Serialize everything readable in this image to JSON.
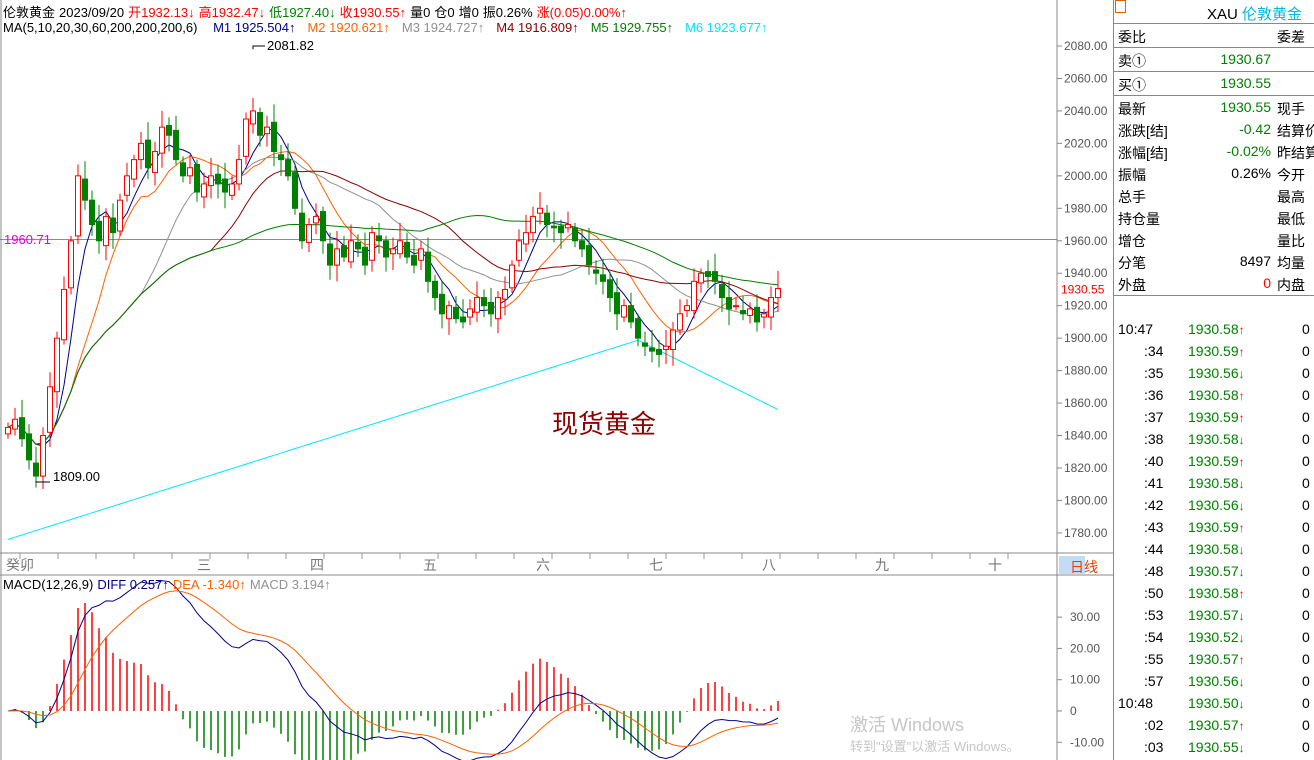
{
  "header": {
    "name": "伦敦黄金",
    "date": "2023/09/20",
    "open": "开1932.13↓",
    "high": "高1932.47↓",
    "low": "低1927.40↓",
    "close": "收1930.55↑",
    "volume": "量0",
    "position": "仓0",
    "increase": "增0",
    "amplitude": "振0.26%",
    "change": "涨(0.05)0.00%↑"
  },
  "ma": {
    "label": "MA(5,10,20,30,60,200,200,200,6)",
    "items": [
      {
        "text": "M1 1925.504↑",
        "color": "#00008b",
        "period": 5
      },
      {
        "text": "M2 1920.621↑",
        "color": "#ff6000",
        "period": 10
      },
      {
        "text": "M3 1924.727↑",
        "color": "#909090",
        "period": 20
      },
      {
        "text": "M4 1916.809↑",
        "color": "#8b0000",
        "period": 30
      },
      {
        "text": "M5 1929.755↑",
        "color": "#008000",
        "period": 60
      },
      {
        "text": "M6 1923.677↑",
        "color": "#00e5ff",
        "period": 200
      }
    ]
  },
  "chart": {
    "watermark": "现货黄金",
    "hline_label": "1960.71",
    "hline_value": 1960.71,
    "last_price_label": "1930.55",
    "max_label": "2081.82",
    "min_label": "1809.00",
    "price_ticks": [
      "2080.00",
      "2060.00",
      "2040.00",
      "2020.00",
      "2000.00",
      "1980.00",
      "1960.00",
      "1940.00",
      "1920.00",
      "1900.00",
      "1880.00",
      "1860.00",
      "1840.00",
      "1820.00",
      "1800.00",
      "1780.00"
    ],
    "up_color": "#ff0000",
    "down_color": "#008000",
    "closes": [
      1845,
      1850,
      1838,
      1825,
      1815,
      1840,
      1870,
      1900,
      1930,
      1960,
      2000,
      1985,
      1970,
      1960,
      1975,
      1965,
      1985,
      2000,
      2010,
      2020,
      2005,
      2015,
      2030,
      2025,
      2010,
      2000,
      2005,
      1990,
      1995,
      2000,
      1995,
      1990,
      1995,
      2010,
      2035,
      2040,
      2025,
      2030,
      2015,
      2010,
      2000,
      1980,
      1960,
      1970,
      1975,
      1960,
      1945,
      1955,
      1950,
      1960,
      1955,
      1945,
      1965,
      1960,
      1950,
      1955,
      1960,
      1950,
      1945,
      1955,
      1935,
      1925,
      1915,
      1920,
      1912,
      1910,
      1918,
      1925,
      1920,
      1915,
      1925,
      1930,
      1945,
      1960,
      1965,
      1975,
      1980,
      1970,
      1968,
      1965,
      1970,
      1960,
      1955,
      1945,
      1940,
      1935,
      1925,
      1915,
      1920,
      1910,
      1900,
      1895,
      1892,
      1890,
      1895,
      1905,
      1915,
      1920,
      1935,
      1940,
      1938,
      1935,
      1925,
      1918,
      1920,
      1915,
      1918,
      1910,
      1915,
      1925,
      1930.55
    ]
  },
  "date_axis": {
    "labels": [
      "癸卯",
      "三",
      "四",
      "五",
      "六",
      "七",
      "八",
      "九",
      "十"
    ],
    "period": "日线"
  },
  "macd": {
    "label": "MACD(12,26,9)",
    "diff": "DIFF 0.257↑",
    "dea": "DEA -1.340↑",
    "macd": "MACD 3.194↑",
    "ticks": [
      "30.00",
      "20.00",
      "10.00",
      "0",
      "-10.00"
    ]
  },
  "panel": {
    "symbol": "XAU",
    "name": "伦敦黄金",
    "weibi": "委比",
    "weicha": "委差",
    "sell_label": "卖①",
    "sell": "1930.67",
    "buy_label": "买①",
    "buy": "1930.55",
    "rows": [
      {
        "l": "最新",
        "v": "1930.55",
        "vc": "#008000",
        "r": "现手"
      },
      {
        "l": "涨跌[结]",
        "v": "-0.42",
        "vc": "#008000",
        "r": "结算价"
      },
      {
        "l": "涨幅[结]",
        "v": "-0.02%",
        "vc": "#008000",
        "r": "昨结算"
      },
      {
        "l": "振幅",
        "v": "0.26%",
        "vc": "#000",
        "r": "今开"
      },
      {
        "l": "总手",
        "v": "",
        "vc": "#000",
        "r": "最高"
      },
      {
        "l": "持仓量",
        "v": "",
        "vc": "#000",
        "r": "最低"
      },
      {
        "l": "增仓",
        "v": "",
        "vc": "#000",
        "r": "量比"
      },
      {
        "l": "分笔",
        "v": "8497",
        "vc": "#000",
        "r": "均量"
      },
      {
        "l": "外盘",
        "v": "0",
        "vc": "#ff0000",
        "r": "内盘"
      }
    ],
    "ticks": [
      {
        "t": "10:47",
        "p": "1930.58",
        "a": "↑",
        "q": "0"
      },
      {
        "t": ":34",
        "p": "1930.59",
        "a": "↑",
        "q": "0"
      },
      {
        "t": ":35",
        "p": "1930.56",
        "a": "↓",
        "q": "0"
      },
      {
        "t": ":36",
        "p": "1930.58",
        "a": "↑",
        "q": "0"
      },
      {
        "t": ":37",
        "p": "1930.59",
        "a": "↑",
        "q": "0"
      },
      {
        "t": ":38",
        "p": "1930.58",
        "a": "↓",
        "q": "0"
      },
      {
        "t": ":40",
        "p": "1930.59",
        "a": "↑",
        "q": "0"
      },
      {
        "t": ":41",
        "p": "1930.58",
        "a": "↓",
        "q": "0"
      },
      {
        "t": ":42",
        "p": "1930.56",
        "a": "↓",
        "q": "0"
      },
      {
        "t": ":43",
        "p": "1930.59",
        "a": "↑",
        "q": "0"
      },
      {
        "t": ":44",
        "p": "1930.58",
        "a": "↓",
        "q": "0"
      },
      {
        "t": ":48",
        "p": "1930.57",
        "a": "↓",
        "q": "0"
      },
      {
        "t": ":50",
        "p": "1930.58",
        "a": "↑",
        "q": "0"
      },
      {
        "t": ":53",
        "p": "1930.57",
        "a": "↓",
        "q": "0"
      },
      {
        "t": ":54",
        "p": "1930.52",
        "a": "↓",
        "q": "0"
      },
      {
        "t": ":55",
        "p": "1930.57",
        "a": "↑",
        "q": "0"
      },
      {
        "t": ":57",
        "p": "1930.56",
        "a": "↓",
        "q": "0"
      },
      {
        "t": "10:48",
        "p": "1930.50",
        "a": "↓",
        "q": "0"
      },
      {
        "t": ":02",
        "p": "1930.57",
        "a": "↑",
        "q": "0"
      },
      {
        "t": ":03",
        "p": "1930.55",
        "a": "↓",
        "q": "0"
      }
    ]
  },
  "os_watermark": {
    "line1": "激活 Windows",
    "line2": "转到\"设置\"以激活 Windows。"
  }
}
